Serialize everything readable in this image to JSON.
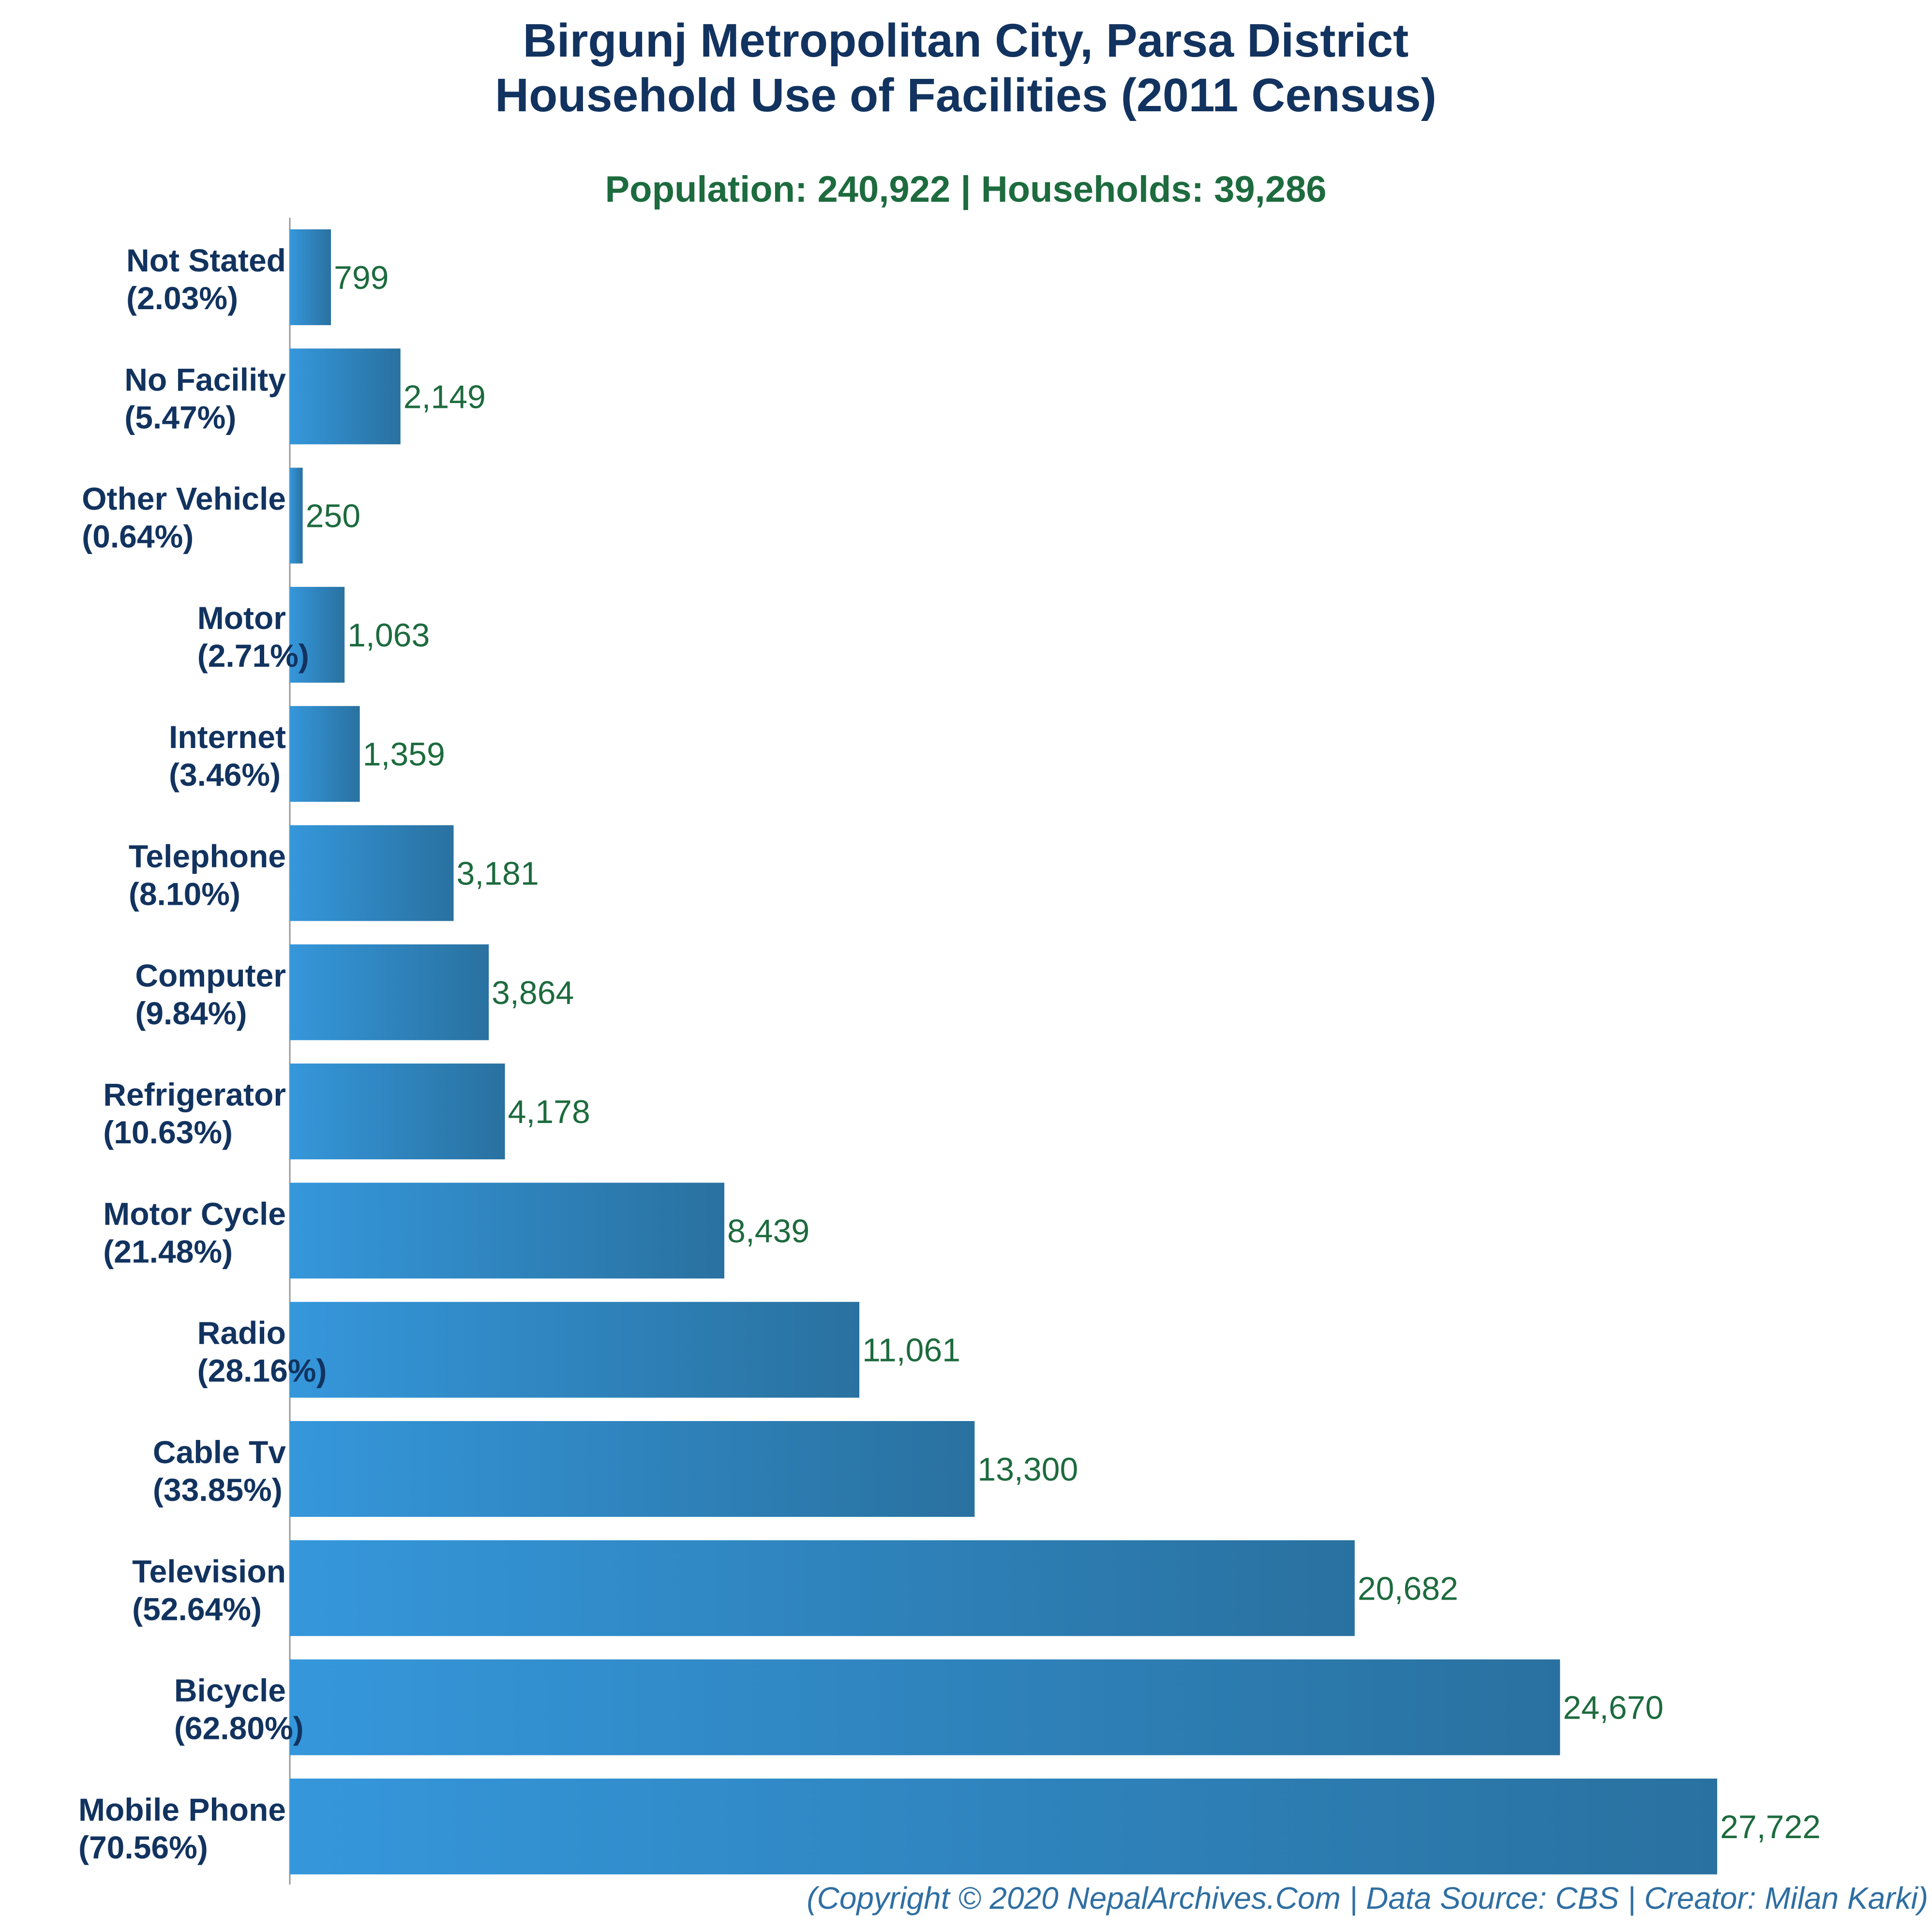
{
  "chart_data": {
    "type": "bar",
    "orientation": "horizontal",
    "title_lines": [
      "Birgunj Metropolitan City, Parsa District",
      "Household Use of Facilities (2011 Census)"
    ],
    "subtitle": "Population: 240,922 | Households: 39,286",
    "categories": [
      "Not Stated",
      "No Facility",
      "Other Vehicle",
      "Motor",
      "Internet",
      "Telephone",
      "Computer",
      "Refrigerator",
      "Motor Cycle",
      "Radio",
      "Cable Tv",
      "Television",
      "Bicycle",
      "Mobile Phone"
    ],
    "percent_labels": [
      "(2.03%)",
      "(5.47%)",
      "(0.64%)",
      "(2.71%)",
      "(3.46%)",
      "(8.10%)",
      "(9.84%)",
      "(10.63%)",
      "(21.48%)",
      "(28.16%)",
      "(33.85%)",
      "(52.64%)",
      "(62.80%)",
      "(70.56%)"
    ],
    "values": [
      799,
      2149,
      250,
      1063,
      1359,
      3181,
      3864,
      4178,
      8439,
      11061,
      13300,
      20682,
      24670,
      27722
    ],
    "value_labels": [
      "799",
      "2,149",
      "250",
      "1,063",
      "1,359",
      "3,181",
      "3,864",
      "4,178",
      "8,439",
      "11,061",
      "13,300",
      "20,682",
      "24,670",
      "27,722"
    ],
    "xlim": [
      0,
      29000
    ],
    "grid": false,
    "footer": "(Copyright © 2020 NepalArchives.Com | Data Source: CBS | Creator: Milan Karki)",
    "colors": {
      "title": "#12335f",
      "subtitle": "#1d6b3e",
      "value_label": "#1d6b3e",
      "bar_gradient_start": "#3597db",
      "bar_gradient_end": "#2971a0",
      "footer": "#2f6fa3",
      "axis": "#999999"
    }
  }
}
